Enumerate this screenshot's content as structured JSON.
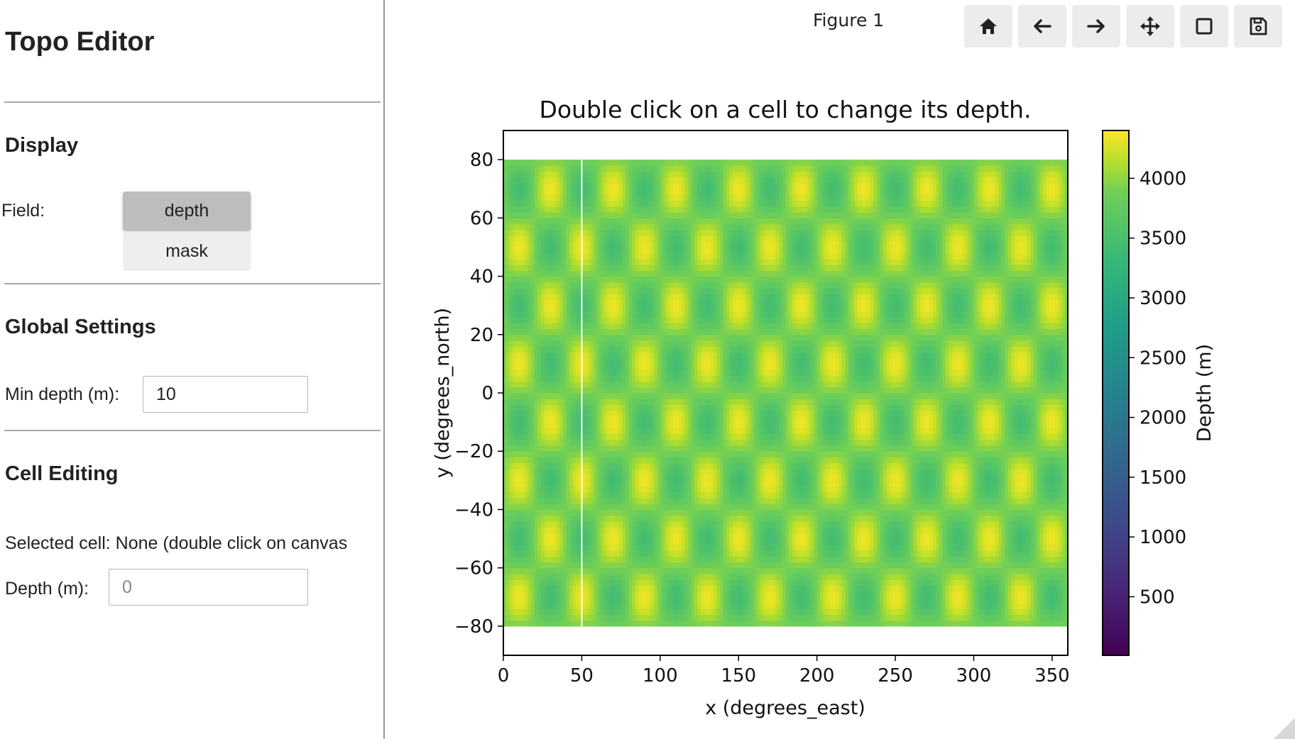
{
  "sidebar": {
    "title": "Topo Editor",
    "display": {
      "heading": "Display",
      "field_label": "Field:",
      "options": [
        "depth",
        "mask"
      ],
      "selected": "depth"
    },
    "global": {
      "heading": "Global Settings",
      "min_depth_label": "Min depth (m):",
      "min_depth_value": "10"
    },
    "cell": {
      "heading": "Cell Editing",
      "selected_text": "Selected cell: None (double click on canvas",
      "depth_label": "Depth (m):",
      "depth_placeholder": "0"
    }
  },
  "figure": {
    "window_title": "Figure 1",
    "toolbar": [
      "home-icon",
      "back-arrow-icon",
      "forward-arrow-icon",
      "pan-move-icon",
      "zoom-rect-icon",
      "save-icon"
    ]
  },
  "chart_data": {
    "type": "heatmap",
    "title": "Double click on a cell to change its depth.",
    "xlabel": "x (degrees_east)",
    "ylabel": "y (degrees_north)",
    "xlim": [
      0,
      360
    ],
    "ylim": [
      -90,
      90
    ],
    "data_extent": {
      "x": [
        0,
        360
      ],
      "y": [
        -80,
        80
      ]
    },
    "x_ticks": [
      0,
      50,
      100,
      150,
      200,
      250,
      300,
      350
    ],
    "y_ticks": [
      80,
      60,
      40,
      20,
      0,
      -20,
      -40,
      -60,
      -80
    ],
    "y_tick_labels": [
      "80",
      "60",
      "40",
      "20",
      "0",
      "−20",
      "−40",
      "−60",
      "−80"
    ],
    "field": "depth",
    "pattern": "periodic sinusoidal depth field",
    "value_range": [
      3350,
      4350
    ],
    "x_wavelength": 40,
    "y_wavelength": 40,
    "highlight_line_x": 50,
    "colormap": "viridis",
    "colorbar": {
      "label": "Depth (m)",
      "range": [
        10,
        4400
      ],
      "ticks": [
        4000,
        3500,
        3000,
        2500,
        2000,
        1500,
        1000,
        500
      ]
    }
  }
}
